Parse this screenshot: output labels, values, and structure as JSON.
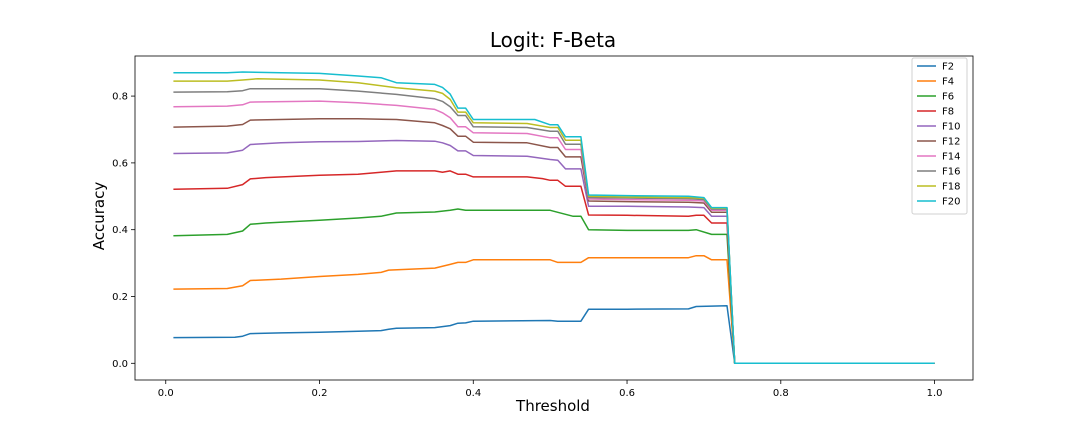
{
  "chart_data": {
    "type": "line",
    "title": "Logit: F-Beta",
    "xlabel": "Threshold",
    "ylabel": "Accuracy",
    "xlim": [
      -0.04,
      1.05
    ],
    "ylim": [
      -0.05,
      0.92
    ],
    "xticks": [
      0.0,
      0.2,
      0.4,
      0.6,
      0.8,
      1.0
    ],
    "xtick_labels": [
      "0.0",
      "0.2",
      "0.4",
      "0.6",
      "0.8",
      "1.0"
    ],
    "yticks": [
      0.0,
      0.2,
      0.4,
      0.6,
      0.8
    ],
    "ytick_labels": [
      "0.0",
      "0.2",
      "0.4",
      "0.6",
      "0.8"
    ],
    "grid": false,
    "legend_position": "top-right",
    "series": [
      {
        "name": "F2",
        "color": "#1f77b4",
        "points": [
          [
            0.01,
            0.077
          ],
          [
            0.09,
            0.078
          ],
          [
            0.1,
            0.081
          ],
          [
            0.11,
            0.089
          ],
          [
            0.15,
            0.091
          ],
          [
            0.2,
            0.093
          ],
          [
            0.25,
            0.096
          ],
          [
            0.28,
            0.098
          ],
          [
            0.29,
            0.102
          ],
          [
            0.3,
            0.105
          ],
          [
            0.35,
            0.107
          ],
          [
            0.37,
            0.113
          ],
          [
            0.38,
            0.12
          ],
          [
            0.39,
            0.121
          ],
          [
            0.4,
            0.126
          ],
          [
            0.5,
            0.128
          ],
          [
            0.51,
            0.126
          ],
          [
            0.54,
            0.126
          ],
          [
            0.55,
            0.162
          ],
          [
            0.6,
            0.162
          ],
          [
            0.68,
            0.163
          ],
          [
            0.69,
            0.17
          ],
          [
            0.73,
            0.172
          ],
          [
            0.74,
            0.0
          ],
          [
            1.0,
            0.0
          ]
        ]
      },
      {
        "name": "F4",
        "color": "#ff7f0e",
        "points": [
          [
            0.01,
            0.222
          ],
          [
            0.08,
            0.224
          ],
          [
            0.1,
            0.232
          ],
          [
            0.11,
            0.248
          ],
          [
            0.15,
            0.252
          ],
          [
            0.2,
            0.26
          ],
          [
            0.25,
            0.266
          ],
          [
            0.28,
            0.272
          ],
          [
            0.29,
            0.279
          ],
          [
            0.35,
            0.285
          ],
          [
            0.37,
            0.296
          ],
          [
            0.38,
            0.302
          ],
          [
            0.39,
            0.302
          ],
          [
            0.4,
            0.31
          ],
          [
            0.5,
            0.31
          ],
          [
            0.51,
            0.302
          ],
          [
            0.54,
            0.302
          ],
          [
            0.55,
            0.316
          ],
          [
            0.68,
            0.316
          ],
          [
            0.69,
            0.322
          ],
          [
            0.7,
            0.322
          ],
          [
            0.71,
            0.31
          ],
          [
            0.73,
            0.31
          ],
          [
            0.74,
            0.0
          ],
          [
            1.0,
            0.0
          ]
        ]
      },
      {
        "name": "F6",
        "color": "#2ca02c",
        "points": [
          [
            0.01,
            0.382
          ],
          [
            0.08,
            0.386
          ],
          [
            0.1,
            0.396
          ],
          [
            0.11,
            0.416
          ],
          [
            0.13,
            0.42
          ],
          [
            0.2,
            0.428
          ],
          [
            0.25,
            0.435
          ],
          [
            0.28,
            0.44
          ],
          [
            0.3,
            0.45
          ],
          [
            0.35,
            0.453
          ],
          [
            0.37,
            0.458
          ],
          [
            0.38,
            0.462
          ],
          [
            0.39,
            0.458
          ],
          [
            0.5,
            0.458
          ],
          [
            0.51,
            0.452
          ],
          [
            0.53,
            0.44
          ],
          [
            0.54,
            0.44
          ],
          [
            0.55,
            0.4
          ],
          [
            0.6,
            0.398
          ],
          [
            0.68,
            0.398
          ],
          [
            0.69,
            0.4
          ],
          [
            0.71,
            0.386
          ],
          [
            0.73,
            0.386
          ],
          [
            0.74,
            0.0
          ],
          [
            1.0,
            0.0
          ]
        ]
      },
      {
        "name": "F8",
        "color": "#d62728",
        "points": [
          [
            0.01,
            0.521
          ],
          [
            0.08,
            0.524
          ],
          [
            0.1,
            0.535
          ],
          [
            0.11,
            0.552
          ],
          [
            0.13,
            0.556
          ],
          [
            0.2,
            0.563
          ],
          [
            0.25,
            0.566
          ],
          [
            0.28,
            0.572
          ],
          [
            0.3,
            0.576
          ],
          [
            0.35,
            0.576
          ],
          [
            0.36,
            0.572
          ],
          [
            0.37,
            0.576
          ],
          [
            0.38,
            0.566
          ],
          [
            0.39,
            0.566
          ],
          [
            0.4,
            0.558
          ],
          [
            0.47,
            0.558
          ],
          [
            0.49,
            0.553
          ],
          [
            0.5,
            0.548
          ],
          [
            0.51,
            0.548
          ],
          [
            0.52,
            0.53
          ],
          [
            0.54,
            0.53
          ],
          [
            0.55,
            0.444
          ],
          [
            0.6,
            0.443
          ],
          [
            0.68,
            0.44
          ],
          [
            0.69,
            0.443
          ],
          [
            0.7,
            0.443
          ],
          [
            0.71,
            0.42
          ],
          [
            0.73,
            0.42
          ],
          [
            0.74,
            0.0
          ],
          [
            1.0,
            0.0
          ]
        ]
      },
      {
        "name": "F10",
        "color": "#9467bd",
        "points": [
          [
            0.01,
            0.628
          ],
          [
            0.08,
            0.63
          ],
          [
            0.1,
            0.638
          ],
          [
            0.11,
            0.655
          ],
          [
            0.15,
            0.66
          ],
          [
            0.2,
            0.663
          ],
          [
            0.25,
            0.664
          ],
          [
            0.3,
            0.667
          ],
          [
            0.35,
            0.665
          ],
          [
            0.36,
            0.66
          ],
          [
            0.37,
            0.652
          ],
          [
            0.38,
            0.636
          ],
          [
            0.39,
            0.636
          ],
          [
            0.4,
            0.622
          ],
          [
            0.47,
            0.62
          ],
          [
            0.5,
            0.61
          ],
          [
            0.51,
            0.608
          ],
          [
            0.52,
            0.582
          ],
          [
            0.54,
            0.582
          ],
          [
            0.55,
            0.47
          ],
          [
            0.6,
            0.47
          ],
          [
            0.68,
            0.468
          ],
          [
            0.7,
            0.466
          ],
          [
            0.71,
            0.44
          ],
          [
            0.73,
            0.44
          ],
          [
            0.74,
            0.0
          ],
          [
            1.0,
            0.0
          ]
        ]
      },
      {
        "name": "F12",
        "color": "#8c564b",
        "points": [
          [
            0.01,
            0.707
          ],
          [
            0.08,
            0.71
          ],
          [
            0.1,
            0.715
          ],
          [
            0.11,
            0.728
          ],
          [
            0.2,
            0.732
          ],
          [
            0.25,
            0.732
          ],
          [
            0.3,
            0.73
          ],
          [
            0.35,
            0.72
          ],
          [
            0.36,
            0.712
          ],
          [
            0.37,
            0.702
          ],
          [
            0.38,
            0.68
          ],
          [
            0.39,
            0.68
          ],
          [
            0.4,
            0.662
          ],
          [
            0.47,
            0.66
          ],
          [
            0.5,
            0.646
          ],
          [
            0.51,
            0.646
          ],
          [
            0.52,
            0.618
          ],
          [
            0.54,
            0.618
          ],
          [
            0.55,
            0.486
          ],
          [
            0.6,
            0.484
          ],
          [
            0.68,
            0.482
          ],
          [
            0.7,
            0.48
          ],
          [
            0.71,
            0.452
          ],
          [
            0.73,
            0.452
          ],
          [
            0.74,
            0.0
          ],
          [
            1.0,
            0.0
          ]
        ]
      },
      {
        "name": "F14",
        "color": "#e377c2",
        "points": [
          [
            0.01,
            0.768
          ],
          [
            0.08,
            0.77
          ],
          [
            0.1,
            0.774
          ],
          [
            0.11,
            0.782
          ],
          [
            0.2,
            0.785
          ],
          [
            0.25,
            0.78
          ],
          [
            0.3,
            0.772
          ],
          [
            0.35,
            0.76
          ],
          [
            0.36,
            0.75
          ],
          [
            0.37,
            0.735
          ],
          [
            0.38,
            0.708
          ],
          [
            0.39,
            0.708
          ],
          [
            0.4,
            0.69
          ],
          [
            0.47,
            0.688
          ],
          [
            0.5,
            0.675
          ],
          [
            0.51,
            0.675
          ],
          [
            0.52,
            0.64
          ],
          [
            0.54,
            0.64
          ],
          [
            0.55,
            0.492
          ],
          [
            0.6,
            0.49
          ],
          [
            0.68,
            0.488
          ],
          [
            0.7,
            0.486
          ],
          [
            0.71,
            0.458
          ],
          [
            0.73,
            0.458
          ],
          [
            0.74,
            0.0
          ],
          [
            1.0,
            0.0
          ]
        ]
      },
      {
        "name": "F16",
        "color": "#7f7f7f",
        "points": [
          [
            0.01,
            0.812
          ],
          [
            0.08,
            0.813
          ],
          [
            0.1,
            0.816
          ],
          [
            0.11,
            0.822
          ],
          [
            0.2,
            0.822
          ],
          [
            0.25,
            0.815
          ],
          [
            0.3,
            0.805
          ],
          [
            0.35,
            0.792
          ],
          [
            0.36,
            0.784
          ],
          [
            0.37,
            0.768
          ],
          [
            0.38,
            0.742
          ],
          [
            0.39,
            0.742
          ],
          [
            0.4,
            0.708
          ],
          [
            0.47,
            0.706
          ],
          [
            0.5,
            0.695
          ],
          [
            0.51,
            0.695
          ],
          [
            0.52,
            0.656
          ],
          [
            0.54,
            0.656
          ],
          [
            0.55,
            0.496
          ],
          [
            0.6,
            0.495
          ],
          [
            0.68,
            0.493
          ],
          [
            0.7,
            0.49
          ],
          [
            0.71,
            0.462
          ],
          [
            0.73,
            0.462
          ],
          [
            0.74,
            0.0
          ],
          [
            1.0,
            0.0
          ]
        ]
      },
      {
        "name": "F18",
        "color": "#bcbd22",
        "points": [
          [
            0.01,
            0.845
          ],
          [
            0.08,
            0.845
          ],
          [
            0.1,
            0.848
          ],
          [
            0.12,
            0.852
          ],
          [
            0.2,
            0.848
          ],
          [
            0.25,
            0.84
          ],
          [
            0.3,
            0.825
          ],
          [
            0.35,
            0.815
          ],
          [
            0.36,
            0.808
          ],
          [
            0.37,
            0.79
          ],
          [
            0.38,
            0.752
          ],
          [
            0.39,
            0.752
          ],
          [
            0.4,
            0.72
          ],
          [
            0.47,
            0.718
          ],
          [
            0.5,
            0.706
          ],
          [
            0.51,
            0.706
          ],
          [
            0.52,
            0.668
          ],
          [
            0.54,
            0.668
          ],
          [
            0.55,
            0.5
          ],
          [
            0.6,
            0.498
          ],
          [
            0.68,
            0.496
          ],
          [
            0.7,
            0.494
          ],
          [
            0.71,
            0.464
          ],
          [
            0.73,
            0.464
          ],
          [
            0.74,
            0.0
          ],
          [
            1.0,
            0.0
          ]
        ]
      },
      {
        "name": "F20",
        "color": "#17becf",
        "points": [
          [
            0.01,
            0.87
          ],
          [
            0.08,
            0.87
          ],
          [
            0.1,
            0.872
          ],
          [
            0.15,
            0.87
          ],
          [
            0.2,
            0.868
          ],
          [
            0.25,
            0.86
          ],
          [
            0.28,
            0.855
          ],
          [
            0.3,
            0.84
          ],
          [
            0.35,
            0.835
          ],
          [
            0.36,
            0.826
          ],
          [
            0.37,
            0.806
          ],
          [
            0.38,
            0.764
          ],
          [
            0.39,
            0.764
          ],
          [
            0.4,
            0.73
          ],
          [
            0.47,
            0.73
          ],
          [
            0.48,
            0.73
          ],
          [
            0.5,
            0.714
          ],
          [
            0.51,
            0.714
          ],
          [
            0.52,
            0.678
          ],
          [
            0.54,
            0.678
          ],
          [
            0.55,
            0.504
          ],
          [
            0.6,
            0.502
          ],
          [
            0.68,
            0.5
          ],
          [
            0.7,
            0.496
          ],
          [
            0.71,
            0.466
          ],
          [
            0.73,
            0.466
          ],
          [
            0.74,
            0.0
          ],
          [
            1.0,
            0.0
          ]
        ]
      }
    ]
  }
}
